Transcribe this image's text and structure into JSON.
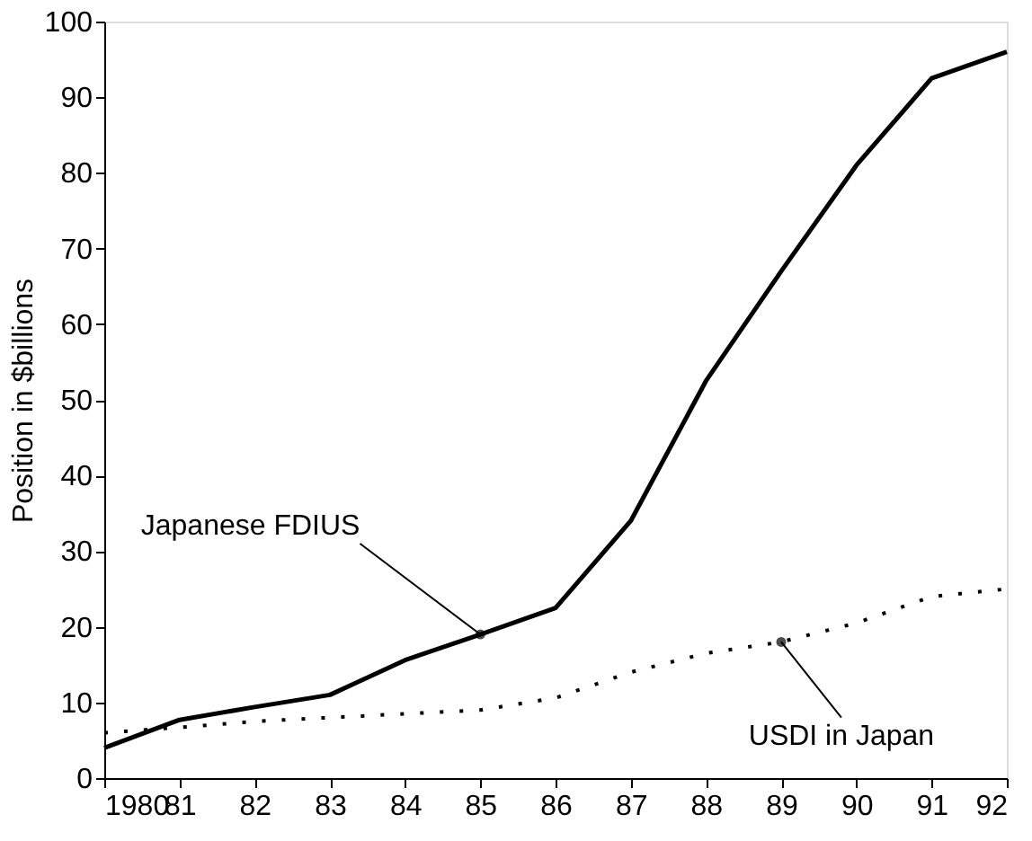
{
  "chart_data": {
    "type": "line",
    "ylabel": "Position in $billions",
    "x": [
      1980,
      1981,
      1982,
      1983,
      1984,
      1985,
      1986,
      1987,
      1988,
      1989,
      1990,
      1991,
      1992
    ],
    "series": [
      {
        "color": "#000000",
        "line_style": "solid",
        "values": [
          4,
          7.7,
          9.4,
          11,
          15.6,
          19,
          22.5,
          34,
          52.5,
          67,
          81,
          92.5,
          96
        ]
      },
      {
        "color": "#000000",
        "line_style": "dotted",
        "values": [
          6,
          6.7,
          7.5,
          8,
          8.5,
          9,
          10.6,
          14,
          16.5,
          18,
          20.5,
          24,
          25
        ]
      }
    ],
    "xlim": [
      1980,
      1992
    ],
    "ylim": [
      0,
      100
    ],
    "xticks": [
      {
        "value": 1980,
        "label": "1980"
      },
      {
        "value": 1981,
        "label": "81"
      },
      {
        "value": 1982,
        "label": "82"
      },
      {
        "value": 1983,
        "label": "83"
      },
      {
        "value": 1984,
        "label": "84"
      },
      {
        "value": 1985,
        "label": "85"
      },
      {
        "value": 1986,
        "label": "86"
      },
      {
        "value": 1987,
        "label": "87"
      },
      {
        "value": 1988,
        "label": "88"
      },
      {
        "value": 1989,
        "label": "89"
      },
      {
        "value": 1990,
        "label": "90"
      },
      {
        "value": 1991,
        "label": "91"
      },
      {
        "value": 1992,
        "label": "92"
      }
    ],
    "yticks": [
      0,
      10,
      20,
      30,
      40,
      50,
      60,
      70,
      80,
      90,
      100
    ],
    "annotations": [
      {
        "text": "Japanese FDIUS",
        "x": 1985,
        "y": 19
      },
      {
        "text": "USDI in Japan",
        "x": 1989,
        "y": 18
      }
    ],
    "grid": false,
    "marker": "none"
  }
}
